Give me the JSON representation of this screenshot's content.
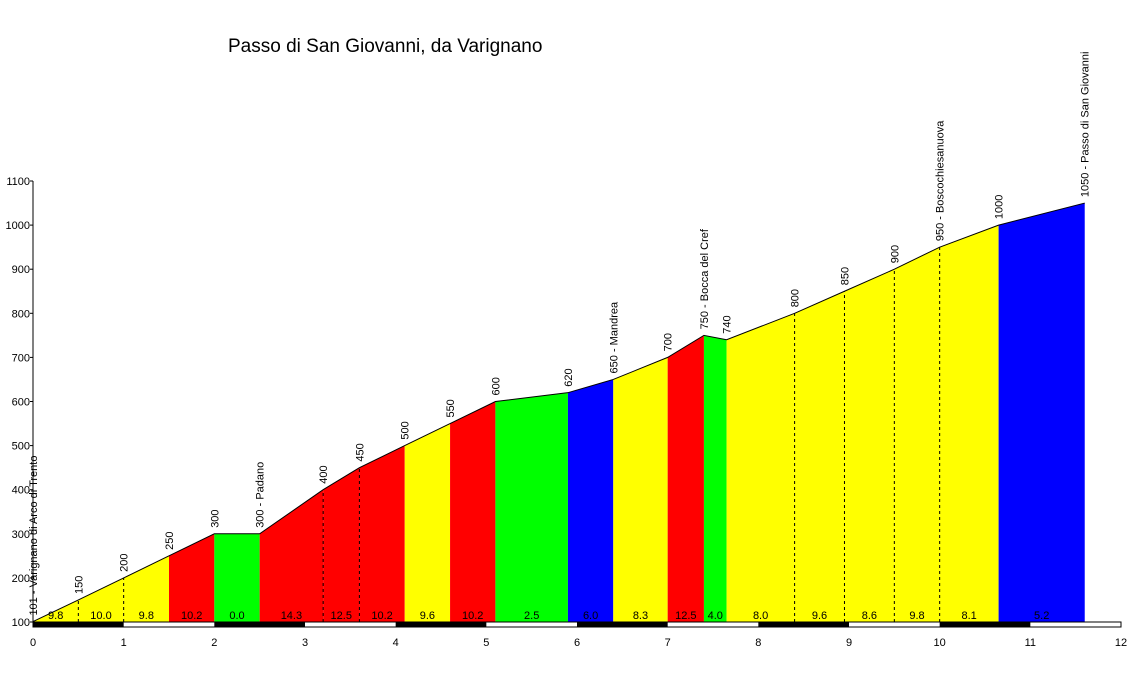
{
  "chart_data": {
    "type": "area",
    "title": "Passo di San Giovanni, da Varignano",
    "xlabel": "",
    "ylabel": "",
    "xlim": [
      0,
      12
    ],
    "ylim": [
      100,
      1100
    ],
    "x_ticks": [
      "0",
      "1",
      "2",
      "3",
      "4",
      "5",
      "6",
      "7",
      "8",
      "9",
      "10",
      "11",
      "12"
    ],
    "y_ticks": [
      "100",
      "200",
      "300",
      "400",
      "500",
      "600",
      "700",
      "800",
      "900",
      "1000",
      "1100"
    ],
    "grid": false,
    "profile": [
      {
        "x": 0.0,
        "y": 101
      },
      {
        "x": 0.5,
        "y": 150
      },
      {
        "x": 1.0,
        "y": 200
      },
      {
        "x": 1.5,
        "y": 250
      },
      {
        "x": 2.0,
        "y": 300
      },
      {
        "x": 2.5,
        "y": 300
      },
      {
        "x": 3.2,
        "y": 400
      },
      {
        "x": 3.6,
        "y": 450
      },
      {
        "x": 4.1,
        "y": 500
      },
      {
        "x": 4.6,
        "y": 550
      },
      {
        "x": 5.1,
        "y": 600
      },
      {
        "x": 5.9,
        "y": 620
      },
      {
        "x": 6.4,
        "y": 650
      },
      {
        "x": 7.0,
        "y": 700
      },
      {
        "x": 7.4,
        "y": 750
      },
      {
        "x": 7.65,
        "y": 740
      },
      {
        "x": 8.4,
        "y": 800
      },
      {
        "x": 8.95,
        "y": 850
      },
      {
        "x": 9.5,
        "y": 900
      },
      {
        "x": 10.0,
        "y": 950
      },
      {
        "x": 10.65,
        "y": 1000
      },
      {
        "x": 11.6,
        "y": 1050
      }
    ],
    "segments": [
      {
        "x0": 0.0,
        "x1": 0.5,
        "grade": "9.8",
        "color": "#ffff00"
      },
      {
        "x0": 0.5,
        "x1": 1.0,
        "grade": "10.0",
        "color": "#ffff00"
      },
      {
        "x0": 1.0,
        "x1": 1.5,
        "grade": "9.8",
        "color": "#ffff00"
      },
      {
        "x0": 1.5,
        "x1": 2.0,
        "grade": "10.2",
        "color": "#ff0000"
      },
      {
        "x0": 2.0,
        "x1": 2.5,
        "grade": "0.0",
        "color": "#00ff00"
      },
      {
        "x0": 2.5,
        "x1": 3.2,
        "grade": "14.3",
        "color": "#ff0000"
      },
      {
        "x0": 3.2,
        "x1": 3.6,
        "grade": "12.5",
        "color": "#ff0000"
      },
      {
        "x0": 3.6,
        "x1": 4.1,
        "grade": "10.2",
        "color": "#ff0000"
      },
      {
        "x0": 4.1,
        "x1": 4.6,
        "grade": "9.6",
        "color": "#ffff00"
      },
      {
        "x0": 4.6,
        "x1": 5.1,
        "grade": "10.2",
        "color": "#ff0000"
      },
      {
        "x0": 5.1,
        "x1": 5.9,
        "grade": "2.5",
        "color": "#00ff00"
      },
      {
        "x0": 5.9,
        "x1": 6.4,
        "grade": "6.0",
        "color": "#0000ff"
      },
      {
        "x0": 6.4,
        "x1": 7.0,
        "grade": "8.3",
        "color": "#ffff00"
      },
      {
        "x0": 7.0,
        "x1": 7.4,
        "grade": "12.5",
        "color": "#ff0000"
      },
      {
        "x0": 7.4,
        "x1": 7.65,
        "grade": "4.0",
        "color": "#00ff00"
      },
      {
        "x0": 7.65,
        "x1": 8.4,
        "grade": "8.0",
        "color": "#ffff00"
      },
      {
        "x0": 8.4,
        "x1": 8.95,
        "grade": "9.6",
        "color": "#ffff00"
      },
      {
        "x0": 8.95,
        "x1": 9.5,
        "grade": "8.6",
        "color": "#ffff00"
      },
      {
        "x0": 9.5,
        "x1": 10.0,
        "grade": "9.8",
        "color": "#ffff00"
      },
      {
        "x0": 10.0,
        "x1": 10.65,
        "grade": "8.1",
        "color": "#ffff00"
      },
      {
        "x0": 10.65,
        "x1": 11.6,
        "grade": "5.2",
        "color": "#0000ff"
      }
    ],
    "point_labels": [
      {
        "x": 0.0,
        "y": 101,
        "text": "101 - Varignano di Arco di Trento"
      },
      {
        "x": 0.5,
        "y": 150,
        "text": "150"
      },
      {
        "x": 1.0,
        "y": 200,
        "text": "200"
      },
      {
        "x": 1.5,
        "y": 250,
        "text": "250"
      },
      {
        "x": 2.0,
        "y": 300,
        "text": "300"
      },
      {
        "x": 2.5,
        "y": 300,
        "text": "300 - Padano"
      },
      {
        "x": 3.2,
        "y": 400,
        "text": "400"
      },
      {
        "x": 3.6,
        "y": 450,
        "text": "450"
      },
      {
        "x": 4.1,
        "y": 500,
        "text": "500"
      },
      {
        "x": 4.6,
        "y": 550,
        "text": "550"
      },
      {
        "x": 5.1,
        "y": 600,
        "text": "600"
      },
      {
        "x": 5.9,
        "y": 620,
        "text": "620"
      },
      {
        "x": 6.4,
        "y": 650,
        "text": "650 - Mandrea"
      },
      {
        "x": 7.0,
        "y": 700,
        "text": "700"
      },
      {
        "x": 7.4,
        "y": 750,
        "text": "750 - Bocca del Cref"
      },
      {
        "x": 7.65,
        "y": 740,
        "text": "740"
      },
      {
        "x": 8.4,
        "y": 800,
        "text": "800"
      },
      {
        "x": 8.95,
        "y": 850,
        "text": "850"
      },
      {
        "x": 9.5,
        "y": 900,
        "text": "900"
      },
      {
        "x": 10.0,
        "y": 950,
        "text": "950 - Boscochiesanuova"
      },
      {
        "x": 10.65,
        "y": 1000,
        "text": "1000"
      },
      {
        "x": 11.6,
        "y": 1050,
        "text": "1050 - Passo di San Giovanni"
      }
    ],
    "colors": {
      "yellow": "#ffff00",
      "red": "#ff0000",
      "green": "#00ff00",
      "blue": "#0000ff"
    }
  }
}
